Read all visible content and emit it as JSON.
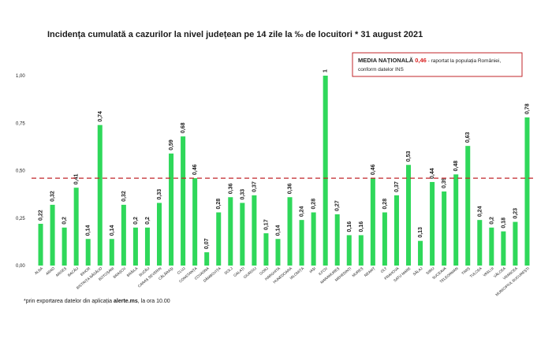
{
  "chart_data": {
    "type": "bar",
    "title": "Incidența cumulată a cazurilor la nivel județean pe 14 zile la ‰ de locuitori * 31 august 2021",
    "xlabel": "",
    "ylabel": "",
    "ylim": [
      0,
      1.0
    ],
    "yticks": [
      "0,00",
      "0,25",
      "0,50",
      "0,75",
      "1,00"
    ],
    "ytick_values": [
      0,
      0.25,
      0.5,
      0.75,
      1.0
    ],
    "grid": false,
    "bar_color": "#2fd85a",
    "reference_line": {
      "value": 0.46,
      "color": "#c0262a",
      "style": "dashed"
    },
    "categories": [
      "ALBA",
      "ARAD",
      "ARGEȘ",
      "BACĂU",
      "BIHOR",
      "BISTRIȚA NĂSĂUD",
      "BOTOȘANI",
      "BRAȘOV",
      "BRĂILA",
      "BUZĂU",
      "CARAȘ SEVERIN",
      "CĂLĂRAȘI",
      "CLUJ",
      "CONSTANȚA",
      "COVASNA",
      "DÂMBOVIȚA",
      "DOLJ",
      "GALAȚI",
      "GIURGIU",
      "GORJ",
      "HARGHITA",
      "HUNEDOARA",
      "IALOMIȚA",
      "IAȘI",
      "ILFOV",
      "MARAMUREȘ",
      "MEHEDINȚI",
      "MUREȘ",
      "NEAMȚ",
      "OLT",
      "PRAHOVA",
      "SATU MARE",
      "SĂLAJ",
      "SIBIU",
      "SUCEAVA",
      "TELEORMAN",
      "TIMIȘ",
      "TULCEA",
      "VASLUI",
      "VÂLCEA",
      "VRANCEA",
      "MUNICIPIUL BUCUREȘTI"
    ],
    "values": [
      0.22,
      0.32,
      0.2,
      0.41,
      0.14,
      0.74,
      0.14,
      0.32,
      0.2,
      0.2,
      0.33,
      0.59,
      0.68,
      0.46,
      0.07,
      0.28,
      0.36,
      0.33,
      0.37,
      0.17,
      0.14,
      0.36,
      0.24,
      0.28,
      1,
      0.27,
      0.16,
      0.16,
      0.46,
      0.28,
      0.37,
      0.53,
      0.13,
      0.44,
      0.39,
      0.48,
      0.63,
      0.24,
      0.2,
      0.18,
      0.23,
      0.78
    ],
    "value_labels": [
      "0,22",
      "0,32",
      "0,2",
      "0,41",
      "0,14",
      "0,74",
      "0,14",
      "0,32",
      "0,2",
      "0,2",
      "0,33",
      "0,59",
      "0,68",
      "0,46",
      "0,07",
      "0,28",
      "0,36",
      "0,33",
      "0,37",
      "0,17",
      "0,14",
      "0,36",
      "0,24",
      "0,28",
      "1",
      "0,27",
      "0,16",
      "0,16",
      "0,46",
      "0,28",
      "0,37",
      "0,53",
      "0,13",
      "0,44",
      "0,39",
      "0,48",
      "0,63",
      "0,24",
      "0,2",
      "0,18",
      "0,23",
      "0,78"
    ]
  },
  "note": {
    "prefix": "MEDIA NAȚIONALĂ ",
    "value": "0,46",
    "rest_line1": " - raportat la populația României,",
    "line2": "conform datelor INS"
  },
  "footnote": {
    "text": "*prin exportarea datelor din aplicația ",
    "bold": "alerte.ms",
    "suffix": ", la ora 10.00"
  }
}
